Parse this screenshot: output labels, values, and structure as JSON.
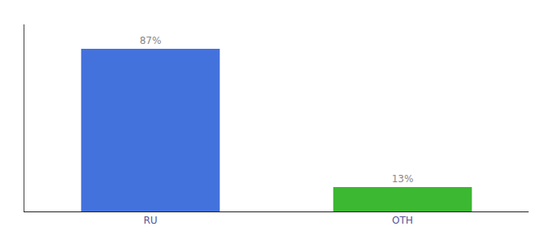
{
  "chart_data": {
    "type": "bar",
    "categories": [
      "RU",
      "OTH"
    ],
    "values": [
      87,
      13
    ],
    "value_labels": [
      "87%",
      "13%"
    ],
    "colors": [
      "#4472dd",
      "#3cb832"
    ],
    "ylim": [
      0,
      100
    ],
    "data_labels": true,
    "tick_labels": "x",
    "grid": false
  }
}
